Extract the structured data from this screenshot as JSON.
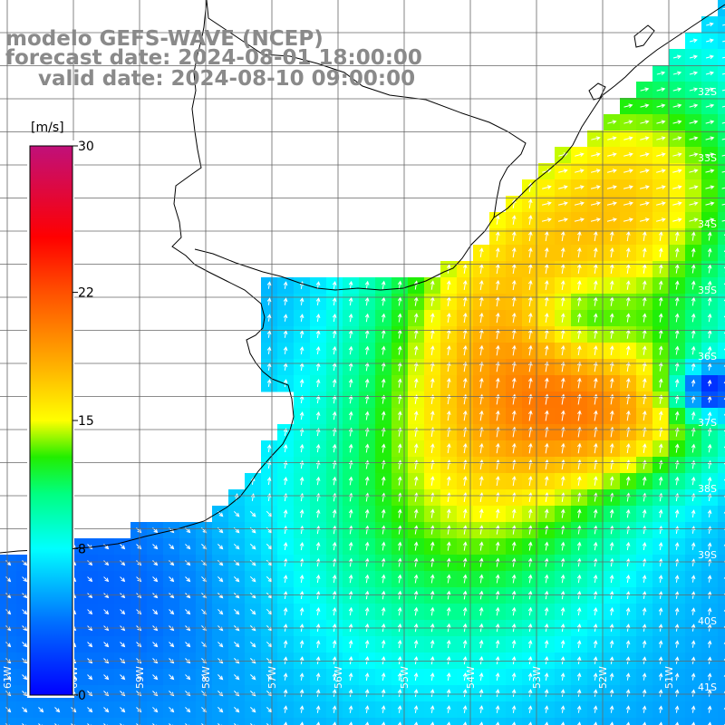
{
  "title": {
    "model": "modelo GEFS-WAVE (NCEP)",
    "forecast": "forecast date: 2024-08-01 18:00:00",
    "valid": "valid date: 2024-08-10 09:00:00"
  },
  "colorbar": {
    "unit": "[m/s]",
    "ticks": [
      {
        "value": 30,
        "label": "30"
      },
      {
        "value": 22,
        "label": "22"
      },
      {
        "value": 15,
        "label": "15"
      },
      {
        "value": 8,
        "label": "8"
      },
      {
        "value": 0,
        "label": "0"
      }
    ],
    "min": 0,
    "max": 30,
    "stops": [
      {
        "value": 0,
        "color": "#0000ff"
      },
      {
        "value": 4,
        "color": "#0070ff"
      },
      {
        "value": 8,
        "color": "#00ffff"
      },
      {
        "value": 11,
        "color": "#00ff80"
      },
      {
        "value": 13,
        "color": "#22ee00"
      },
      {
        "value": 15,
        "color": "#ffff00"
      },
      {
        "value": 18,
        "color": "#ffb000"
      },
      {
        "value": 22,
        "color": "#ff5000"
      },
      {
        "value": 25,
        "color": "#ff0000"
      },
      {
        "value": 30,
        "color": "#c0107a"
      }
    ]
  },
  "lat_labels": [
    "32S",
    "33S",
    "34S",
    "35S",
    "36S",
    "37S",
    "38S",
    "39S",
    "40S",
    "41S"
  ],
  "lon_labels": [
    "61W",
    "60W",
    "59W",
    "58W",
    "57W",
    "56W",
    "55W",
    "54W",
    "53W",
    "52W",
    "51W"
  ],
  "colors": {
    "land": "#ffffff",
    "coast": "#000000",
    "grid": "#555555",
    "arrow": "#ffffff",
    "title": "#8a8a8a"
  }
}
